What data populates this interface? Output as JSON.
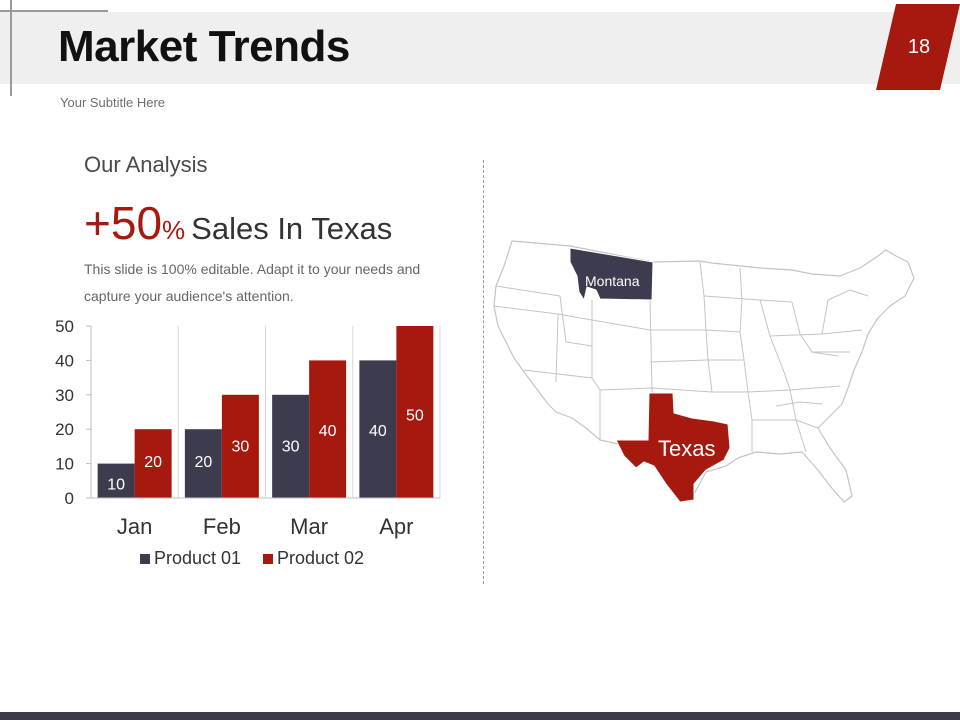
{
  "slide": {
    "title": "Market Trends",
    "subtitle": "Your Subtitle Here",
    "page_number": "18",
    "accent_color": "#a6190f",
    "dark_color": "#3d3c4f"
  },
  "analysis": {
    "heading": "Our Analysis",
    "stat_number": "+50",
    "stat_unit": "%",
    "stat_text": "Sales In Texas",
    "description": "This slide is 100% editable. Adapt it to your needs and capture your audience's attention."
  },
  "map": {
    "highlighted_states": [
      "Montana",
      "Texas"
    ],
    "montana_label": "Montana",
    "texas_label": "Texas"
  },
  "chart_data": {
    "type": "bar",
    "categories": [
      "Jan",
      "Feb",
      "Mar",
      "Apr"
    ],
    "series": [
      {
        "name": "Product 01",
        "values": [
          10,
          20,
          30,
          40
        ],
        "color": "#3d3c4f"
      },
      {
        "name": "Product 02",
        "values": [
          20,
          30,
          40,
          50
        ],
        "color": "#a6190f"
      }
    ],
    "ylim": [
      0,
      50
    ],
    "yticks": [
      0,
      10,
      20,
      30,
      40,
      50
    ],
    "legend_position": "bottom",
    "grid": "vertical",
    "data_labels": true
  }
}
